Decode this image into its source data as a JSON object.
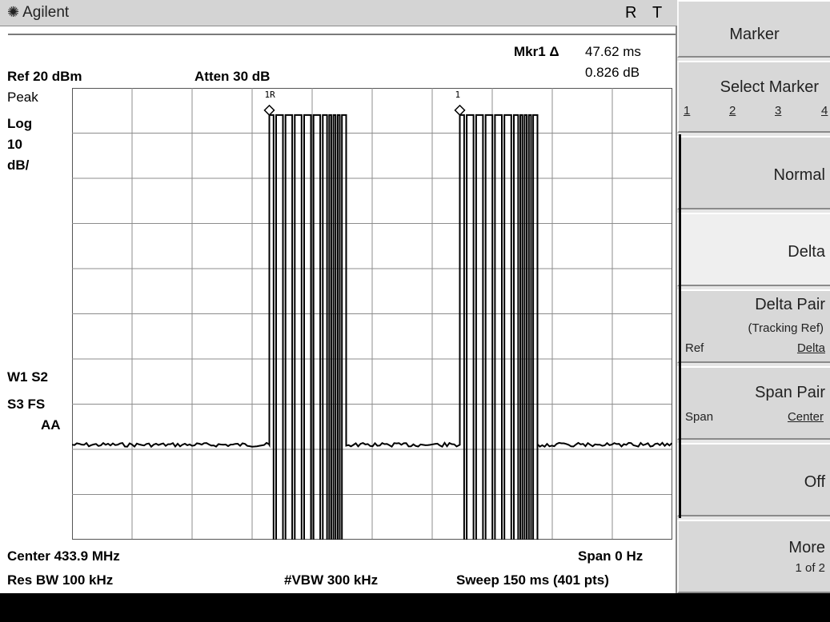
{
  "header": {
    "brand": "Agilent",
    "indicators": [
      "R",
      "T"
    ]
  },
  "marker_readout": {
    "label": "Mkr1 Δ",
    "time": "47.62 ms",
    "amplitude": "0.826 dB"
  },
  "settings": {
    "ref_level": "Ref 20 dBm",
    "atten": "Atten 30 dB",
    "detector": "Peak",
    "scale_type": "Log",
    "scale_value": "10",
    "scale_unit": "dB/",
    "trace_flags_1": "W1  S2",
    "trace_flags_2": "S3  FS",
    "trace_flags_3": "AA"
  },
  "footer": {
    "center": "Center 433.9 MHz",
    "span": "Span 0 Hz",
    "res_bw": "Res BW 100 kHz",
    "vbw": "#VBW 300 kHz",
    "sweep": "Sweep 150 ms (401 pts)"
  },
  "markers": [
    {
      "label": "1R",
      "time_ms": 49.3
    },
    {
      "label": "1",
      "time_ms": 96.9
    }
  ],
  "trace": {
    "sweep_ms": 150,
    "burst_1": {
      "start_ms": 49.3,
      "end_ms": 68.5
    },
    "burst_2": {
      "start_ms": 96.9,
      "end_ms": 116.3
    },
    "high_level_dB": 14,
    "noise_level_dB": -59
  },
  "softkeys": {
    "title": "Marker",
    "select_marker": {
      "label": "Select Marker",
      "options": [
        "1",
        "2",
        "3",
        "4"
      ]
    },
    "normal": "Normal",
    "delta": "Delta",
    "delta_pair": {
      "label": "Delta Pair",
      "sub": "(Tracking Ref)",
      "left": "Ref",
      "right": "Delta"
    },
    "span_pair": {
      "label": "Span Pair",
      "left": "Span",
      "right": "Center"
    },
    "off": "Off",
    "more": {
      "label": "More",
      "sub": "1 of 2"
    }
  },
  "colors": {
    "panel": "#d8d8d8",
    "trace": "#000000",
    "grid": "#8c8c8c"
  }
}
